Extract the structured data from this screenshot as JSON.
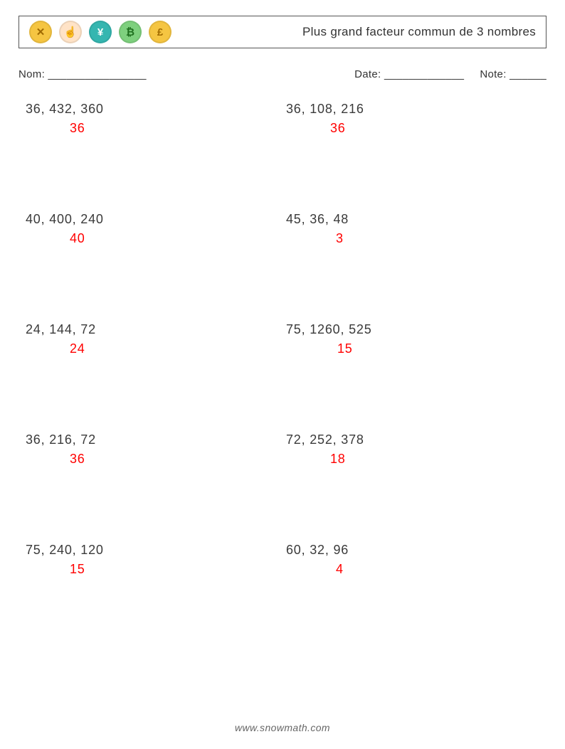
{
  "header": {
    "title": "Plus grand facteur commun de 3 nombres",
    "icons": [
      {
        "name": "xrp-icon",
        "glyph": "✕",
        "bg": "#f5c542",
        "fg": "#a06a00"
      },
      {
        "name": "finger-icon",
        "glyph": "☝",
        "bg": "#ffe3c7",
        "fg": "#d88a3d"
      },
      {
        "name": "yen-icon",
        "glyph": "¥",
        "bg": "#35b6b0",
        "fg": "#ffffff"
      },
      {
        "name": "bitcoin-icon",
        "glyph": "₿",
        "bg": "#7ed07e",
        "fg": "#1f6f1f"
      },
      {
        "name": "pound-icon",
        "glyph": "£",
        "bg": "#f5c542",
        "fg": "#a06a00"
      }
    ]
  },
  "info": {
    "name_label": "Nom:",
    "name_blank": "________________",
    "date_label": "Date:",
    "date_blank": "_____________",
    "note_label": "Note:",
    "note_blank": "______"
  },
  "problems": [
    {
      "numbers": "36, 432, 360",
      "answer": "36",
      "answer_pad": 62
    },
    {
      "numbers": "36, 108, 216",
      "answer": "36",
      "answer_pad": 62
    },
    {
      "numbers": "40, 400, 240",
      "answer": "40",
      "answer_pad": 62
    },
    {
      "numbers": "45, 36, 48",
      "answer": "3",
      "answer_pad": 70
    },
    {
      "numbers": "24, 144, 72",
      "answer": "24",
      "answer_pad": 62
    },
    {
      "numbers": "75, 1260, 525",
      "answer": "15",
      "answer_pad": 72
    },
    {
      "numbers": "36, 216, 72",
      "answer": "36",
      "answer_pad": 62
    },
    {
      "numbers": "72, 252, 378",
      "answer": "18",
      "answer_pad": 62
    },
    {
      "numbers": "75, 240, 120",
      "answer": "15",
      "answer_pad": 62
    },
    {
      "numbers": "60, 32, 96",
      "answer": "4",
      "answer_pad": 70
    }
  ],
  "footer": "www.snowmath.com",
  "style": {
    "answer_color": "#ff0000",
    "text_color": "#3a3a3a"
  }
}
